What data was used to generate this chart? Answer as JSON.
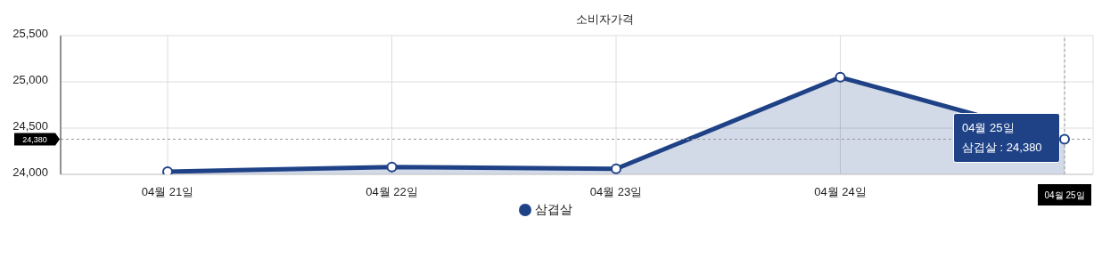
{
  "chart_data": {
    "type": "area",
    "title": "소비자가격",
    "categories": [
      "04월 21일",
      "04월 22일",
      "04월 23일",
      "04월 24일",
      "04월 25일"
    ],
    "series": [
      {
        "name": "삼겹살",
        "color": "#1f4287",
        "values": [
          24030,
          24080,
          24060,
          25050,
          24380
        ]
      }
    ],
    "ylim": [
      24000,
      25500
    ],
    "yticks": [
      {
        "value": 24000,
        "label": "24,000"
      },
      {
        "value": 24500,
        "label": "24,500"
      },
      {
        "value": 25000,
        "label": "25,000"
      },
      {
        "value": 25500,
        "label": "25,500"
      }
    ],
    "grid": true,
    "legend": "bottom",
    "marker": "circle",
    "ref_lines": [
      {
        "axis": "y",
        "value": 24380,
        "label": "24,380",
        "color": "#999999",
        "line_style": "dashed"
      },
      {
        "axis": "x",
        "value": "04월 25일",
        "color": "#999999",
        "line_style": "dashed"
      }
    ],
    "annotations": [
      "04월 25일\n삼겹살 : 24,380"
    ]
  }
}
